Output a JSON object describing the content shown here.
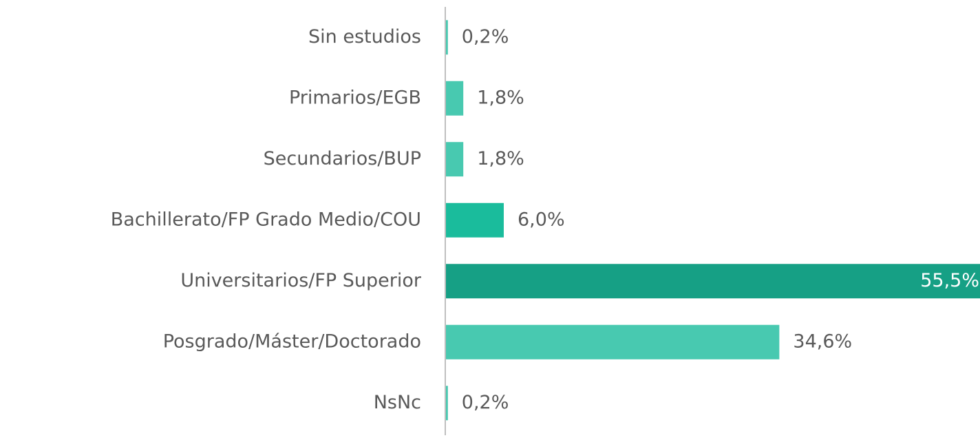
{
  "chart_data": {
    "type": "hbar",
    "categories": [
      "Sin estudios",
      "Primarios/EGB",
      "Secundarios/BUP",
      "Bachillerato/FP Grado Medio/COU",
      "Universitarios/FP Superior",
      "Posgrado/Máster/Doctorado",
      "NsNc"
    ],
    "values": [
      0.2,
      1.8,
      1.8,
      6.0,
      55.5,
      34.6,
      0.2
    ],
    "value_labels": [
      "0,2%",
      "1,8%",
      "1,8%",
      "6,0%",
      "55,5%",
      "34,6%",
      "0,2%"
    ],
    "colors": [
      "#48c9b0",
      "#48c9b0",
      "#48c9b0",
      "#1abc9c",
      "#16a085",
      "#48c9b0",
      "#48c9b0"
    ]
  }
}
